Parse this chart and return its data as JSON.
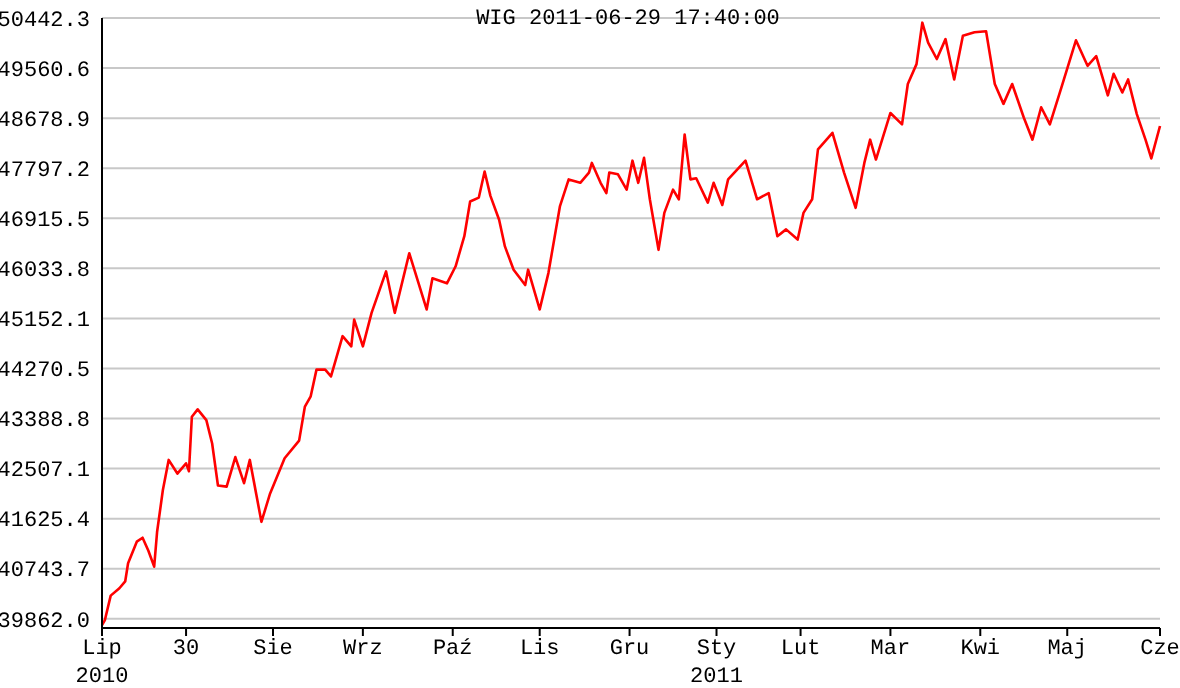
{
  "chart_data": {
    "type": "line",
    "title": "WIG 2011-06-29 17:40:00",
    "x": [
      "2010-06-29",
      "2010-06-30",
      "2010-07-02",
      "2010-07-05",
      "2010-07-07",
      "2010-07-08",
      "2010-07-11",
      "2010-07-13",
      "2010-07-15",
      "2010-07-17",
      "2010-07-18",
      "2010-07-20",
      "2010-07-22",
      "2010-07-25",
      "2010-07-28",
      "2010-07-29",
      "2010-07-30",
      "2010-08-01",
      "2010-08-04",
      "2010-08-06",
      "2010-08-08",
      "2010-08-11",
      "2010-08-14",
      "2010-08-17",
      "2010-08-19",
      "2010-08-23",
      "2010-08-26",
      "2010-08-31",
      "2010-09-05",
      "2010-09-07",
      "2010-09-09",
      "2010-09-11",
      "2010-09-14",
      "2010-09-16",
      "2010-09-20",
      "2010-09-23",
      "2010-09-24",
      "2010-09-27",
      "2010-09-30",
      "2010-10-05",
      "2010-10-08",
      "2010-10-13",
      "2010-10-19",
      "2010-10-21",
      "2010-10-26",
      "2010-10-29",
      "2010-11-01",
      "2010-11-03",
      "2010-11-06",
      "2010-11-08",
      "2010-11-10",
      "2010-11-13",
      "2010-11-15",
      "2010-11-18",
      "2010-11-22",
      "2010-11-23",
      "2010-11-27",
      "2010-11-30",
      "2010-12-04",
      "2010-12-07",
      "2010-12-11",
      "2010-12-14",
      "2010-12-15",
      "2010-12-18",
      "2010-12-20",
      "2010-12-21",
      "2010-12-24",
      "2010-12-27",
      "2010-12-29",
      "2010-12-31",
      "2011-01-02",
      "2011-01-04",
      "2011-01-07",
      "2011-01-09",
      "2011-01-12",
      "2011-01-14",
      "2011-01-16",
      "2011-01-18",
      "2011-01-20",
      "2011-01-24",
      "2011-01-26",
      "2011-01-29",
      "2011-01-31",
      "2011-02-06",
      "2011-02-10",
      "2011-02-14",
      "2011-02-17",
      "2011-02-20",
      "2011-02-24",
      "2011-02-26",
      "2011-03-01",
      "2011-03-03",
      "2011-03-08",
      "2011-03-12",
      "2011-03-16",
      "2011-03-19",
      "2011-03-21",
      "2011-03-23",
      "2011-03-28",
      "2011-04-01",
      "2011-04-03",
      "2011-04-06",
      "2011-04-08",
      "2011-04-10",
      "2011-04-13",
      "2011-04-16",
      "2011-04-19",
      "2011-04-22",
      "2011-04-26",
      "2011-04-30",
      "2011-05-03",
      "2011-05-06",
      "2011-05-09",
      "2011-05-13",
      "2011-05-16",
      "2011-05-19",
      "2011-05-22",
      "2011-05-26",
      "2011-05-31",
      "2011-06-04",
      "2011-06-07",
      "2011-06-11",
      "2011-06-13",
      "2011-06-16",
      "2011-06-18",
      "2011-06-21",
      "2011-06-24",
      "2011-06-26",
      "2011-06-29"
    ],
    "series": [
      {
        "color": "#ff0000",
        "values": [
          39750,
          39840,
          40270,
          40400,
          40520,
          40840,
          41220,
          41290,
          41060,
          40780,
          41390,
          42130,
          42660,
          42420,
          42600,
          42460,
          43420,
          43550,
          43360,
          42950,
          42210,
          42190,
          42710,
          42250,
          42660,
          41570,
          42070,
          42690,
          43000,
          43600,
          43780,
          44250,
          44250,
          44130,
          44840,
          44660,
          45130,
          44660,
          45250,
          45980,
          45250,
          46300,
          45310,
          45860,
          45770,
          46070,
          46600,
          47210,
          47280,
          47740,
          47310,
          46890,
          46420,
          46010,
          45740,
          46010,
          45310,
          45950,
          47130,
          47600,
          47540,
          47720,
          47890,
          47540,
          47360,
          47720,
          47690,
          47420,
          47930,
          47540,
          47980,
          47250,
          46360,
          47010,
          47420,
          47250,
          48390,
          47600,
          47620,
          47190,
          47540,
          47150,
          47600,
          47930,
          47250,
          47360,
          46600,
          46720,
          46540,
          47010,
          47250,
          48130,
          48420,
          47720,
          47100,
          47890,
          48300,
          47950,
          48770,
          48570,
          49280,
          49630,
          50360,
          50010,
          49720,
          50070,
          49360,
          50130,
          50190,
          50210,
          49280,
          48930,
          49280,
          48690,
          48300,
          48870,
          48570,
          49220,
          50050,
          49600,
          49770,
          49080,
          49460,
          49130,
          49360,
          48750,
          48300,
          47970,
          48540
        ]
      }
    ],
    "xlim": [
      "2010-06-29",
      "2011-06-29"
    ],
    "xticks": [
      {
        "value": "2010-06-29",
        "label": "Lip\n2010"
      },
      {
        "value": "2010-07-28",
        "label": "30"
      },
      {
        "value": "2010-08-27",
        "label": "Sie"
      },
      {
        "value": "2010-09-27",
        "label": "Wrz"
      },
      {
        "value": "2010-10-28",
        "label": "Paź"
      },
      {
        "value": "2010-11-27",
        "label": "Lis"
      },
      {
        "value": "2010-12-28",
        "label": "Gru"
      },
      {
        "value": "2011-01-27",
        "label": "Sty\n2011"
      },
      {
        "value": "2011-02-25",
        "label": "Lut"
      },
      {
        "value": "2011-03-28",
        "label": "Mar"
      },
      {
        "value": "2011-04-28",
        "label": "Kwi"
      },
      {
        "value": "2011-05-28",
        "label": "Maj"
      },
      {
        "value": "2011-06-29",
        "label": "Cze"
      }
    ],
    "ylim": [
      39700,
      50442.3
    ],
    "yticks": [
      {
        "value": 39862,
        "label": "39862.0"
      },
      40743.7,
      41625.4,
      42507.1,
      43388.8,
      44270.5,
      45152.1,
      46033.8,
      46915.5,
      47797.2,
      48678.9,
      49560.6,
      50442.3
    ],
    "grid": "y"
  }
}
